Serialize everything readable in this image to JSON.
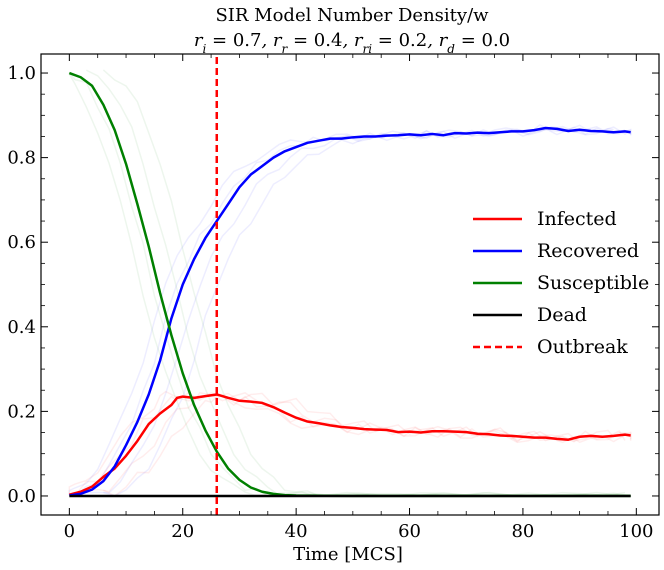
{
  "chart_data": {
    "type": "line",
    "title": "SIR Model Number Density/w",
    "subtitle": "r_i = 0.7, r_r = 0.4, r_ri = 0.2, r_d = 0.0",
    "subtitle_parts": [
      {
        "sym": "r",
        "sub": "i",
        "val": "0.7"
      },
      {
        "sym": "r",
        "sub": "r",
        "val": "0.4"
      },
      {
        "sym": "r",
        "sub": "ri",
        "val": "0.2"
      },
      {
        "sym": "r",
        "sub": "d",
        "val": "0.0"
      }
    ],
    "xlabel": "Time [MCS]",
    "ylabel": "",
    "xlim": [
      -5,
      104
    ],
    "ylim": [
      -0.045,
      1.045
    ],
    "xticks": [
      0,
      20,
      40,
      60,
      80,
      100
    ],
    "yticks": [
      0.0,
      0.2,
      0.4,
      0.6,
      0.8,
      1.0
    ],
    "grid": false,
    "legend_position": "center-right",
    "outbreak_x": 26,
    "series": [
      {
        "name": "Infected",
        "color": "#ff0000",
        "dash": false,
        "x": [
          0,
          2,
          4,
          6,
          8,
          10,
          12,
          14,
          16,
          18,
          19,
          20,
          22,
          24,
          26,
          28,
          30,
          32,
          34,
          36,
          38,
          40,
          42,
          44,
          46,
          48,
          50,
          52,
          54,
          56,
          58,
          60,
          62,
          64,
          66,
          68,
          70,
          72,
          74,
          76,
          78,
          80,
          82,
          84,
          86,
          88,
          90,
          92,
          94,
          96,
          98,
          99
        ],
        "y": [
          0.003,
          0.01,
          0.022,
          0.045,
          0.065,
          0.095,
          0.13,
          0.17,
          0.195,
          0.215,
          0.232,
          0.235,
          0.232,
          0.236,
          0.24,
          0.232,
          0.225,
          0.223,
          0.22,
          0.21,
          0.197,
          0.185,
          0.176,
          0.172,
          0.167,
          0.163,
          0.161,
          0.158,
          0.157,
          0.156,
          0.151,
          0.152,
          0.15,
          0.153,
          0.153,
          0.152,
          0.151,
          0.147,
          0.146,
          0.143,
          0.142,
          0.14,
          0.138,
          0.138,
          0.135,
          0.133,
          0.14,
          0.142,
          0.14,
          0.142,
          0.145,
          0.143
        ]
      },
      {
        "name": "Recovered",
        "color": "#0000ff",
        "dash": false,
        "x": [
          0,
          2,
          4,
          6,
          8,
          10,
          12,
          14,
          16,
          18,
          20,
          22,
          24,
          26,
          28,
          30,
          32,
          34,
          36,
          38,
          40,
          42,
          44,
          46,
          48,
          50,
          52,
          54,
          56,
          58,
          60,
          62,
          64,
          66,
          68,
          70,
          72,
          74,
          76,
          78,
          80,
          82,
          84,
          86,
          88,
          90,
          92,
          94,
          96,
          98,
          99
        ],
        "y": [
          0.001,
          0.005,
          0.015,
          0.035,
          0.07,
          0.12,
          0.175,
          0.24,
          0.32,
          0.42,
          0.5,
          0.56,
          0.61,
          0.65,
          0.69,
          0.73,
          0.76,
          0.78,
          0.8,
          0.815,
          0.825,
          0.835,
          0.84,
          0.845,
          0.845,
          0.848,
          0.85,
          0.85,
          0.852,
          0.853,
          0.855,
          0.853,
          0.856,
          0.853,
          0.858,
          0.857,
          0.859,
          0.858,
          0.86,
          0.862,
          0.862,
          0.865,
          0.87,
          0.868,
          0.863,
          0.866,
          0.863,
          0.862,
          0.86,
          0.862,
          0.86
        ]
      },
      {
        "name": "Susceptible",
        "color": "#008000",
        "dash": false,
        "x": [
          0,
          2,
          4,
          6,
          8,
          10,
          12,
          14,
          16,
          18,
          20,
          22,
          24,
          26,
          28,
          30,
          32,
          34,
          36,
          38,
          40,
          45,
          50,
          55,
          60,
          65,
          70,
          75,
          80,
          85,
          90,
          95,
          99
        ],
        "y": [
          1.0,
          0.99,
          0.97,
          0.925,
          0.865,
          0.785,
          0.69,
          0.59,
          0.48,
          0.38,
          0.29,
          0.215,
          0.155,
          0.105,
          0.065,
          0.038,
          0.02,
          0.01,
          0.005,
          0.002,
          0.001,
          0.0005,
          0.0003,
          0.0002,
          0.0002,
          0.0002,
          0.0002,
          0.0002,
          0.0002,
          0.0002,
          0.0002,
          0.0002,
          0.0002
        ]
      },
      {
        "name": "Dead",
        "color": "#000000",
        "dash": false,
        "x": [
          0,
          99
        ],
        "y": [
          0.0,
          0.0
        ]
      },
      {
        "name": "Outbreak",
        "color": "#ff0000",
        "dash": true,
        "x": [
          26,
          26
        ],
        "y": [
          -0.045,
          1.045
        ]
      }
    ]
  }
}
